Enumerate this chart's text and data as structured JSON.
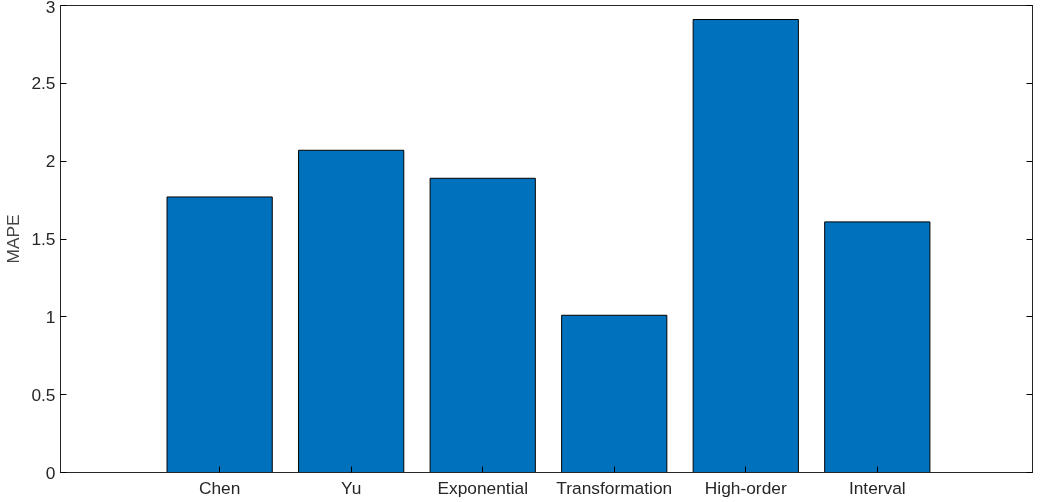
{
  "chart_data": {
    "type": "bar",
    "ylabel": "MAPE",
    "categories": [
      "Chen",
      "Yu",
      "Exponential",
      "Transformation",
      "High-order",
      "Interval"
    ],
    "values": [
      1.77,
      2.07,
      1.89,
      1.01,
      2.91,
      1.61
    ],
    "color": "#0072bd",
    "ylim": [
      0,
      3
    ],
    "yticks": [
      0,
      0.5,
      1,
      1.5,
      2,
      2.5,
      3
    ],
    "grid": false
  }
}
